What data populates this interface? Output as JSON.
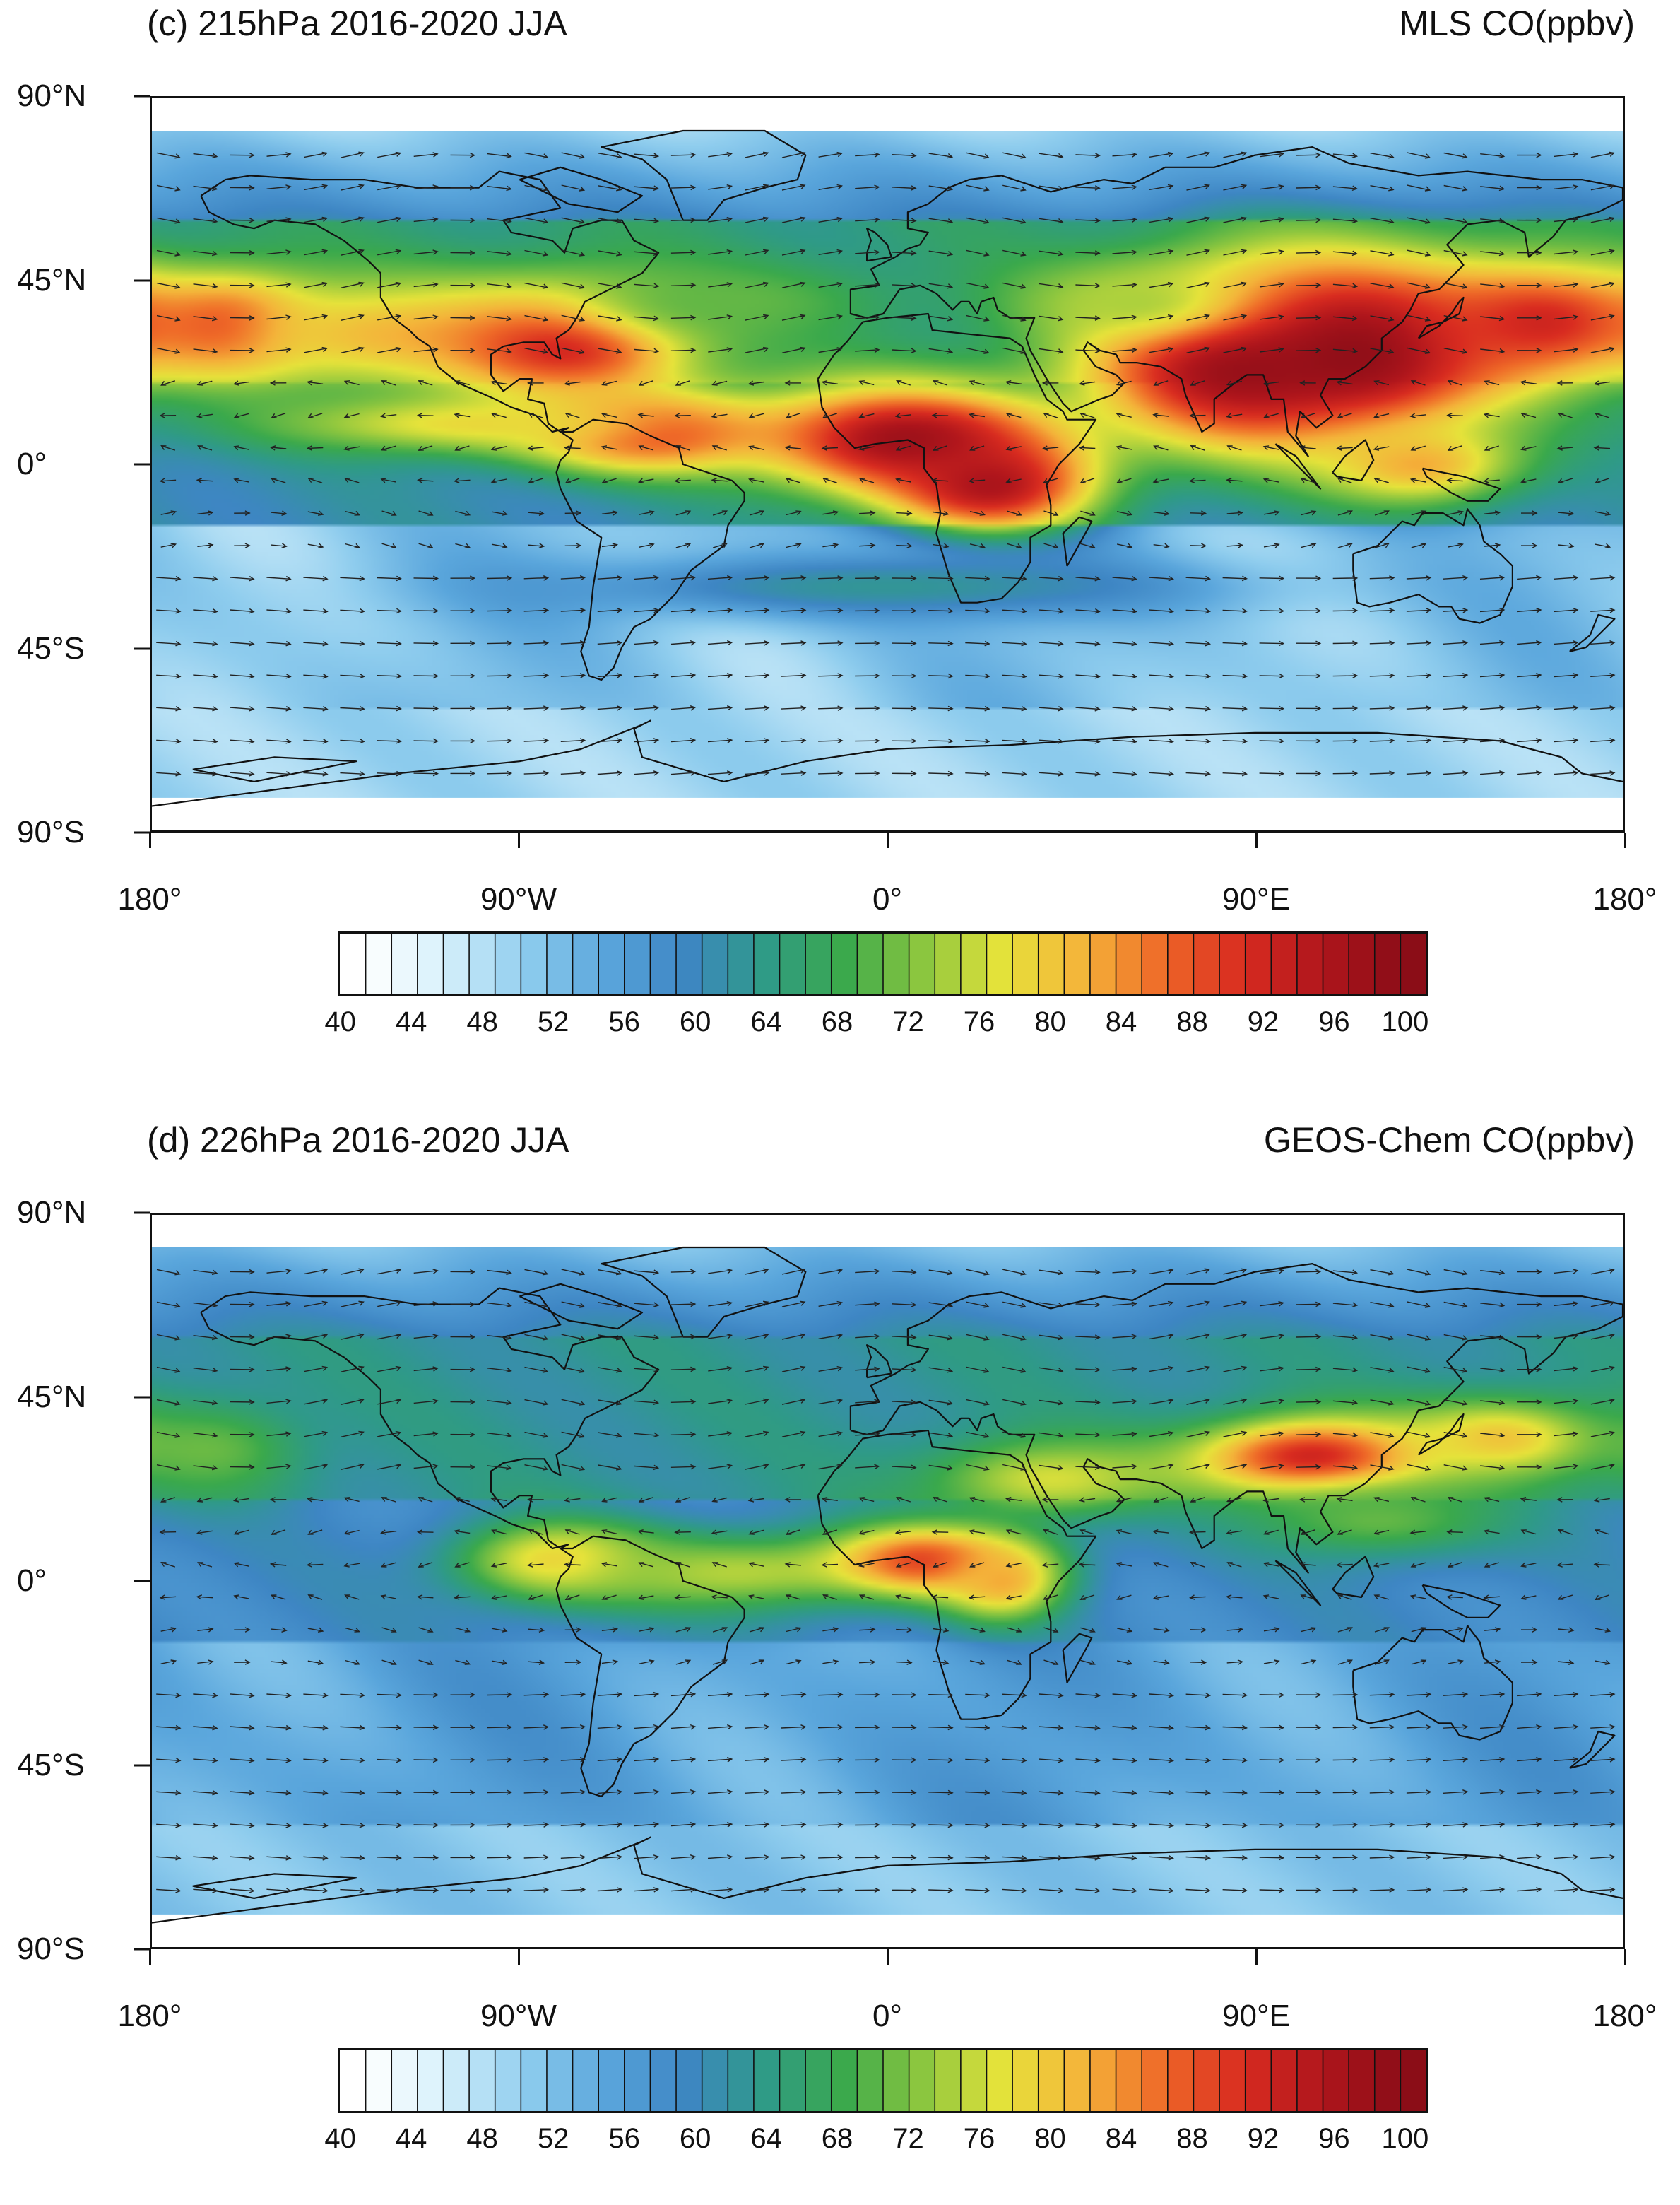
{
  "panels": [
    {
      "id": "c",
      "title_left": "(c) 215hPa  2016-2020 JJA",
      "title_right": "MLS CO(ppbv)",
      "blobs": [
        {
          "lon": -160,
          "lat": 34,
          "rx": 20,
          "ry": 12,
          "value": 90
        },
        {
          "lon": -125,
          "lat": 32,
          "rx": 45,
          "ry": 14,
          "value": 80
        },
        {
          "lon": -78,
          "lat": 30,
          "rx": 30,
          "ry": 14,
          "value": 94
        },
        {
          "lon": -60,
          "lat": 8,
          "rx": 30,
          "ry": 10,
          "value": 92
        },
        {
          "lon": -100,
          "lat": 10,
          "rx": 55,
          "ry": 8,
          "value": 78
        },
        {
          "lon": 5,
          "lat": 6,
          "rx": 38,
          "ry": 14,
          "value": 98
        },
        {
          "lon": 25,
          "lat": -5,
          "rx": 25,
          "ry": 12,
          "value": 96
        },
        {
          "lon": 85,
          "lat": 25,
          "rx": 35,
          "ry": 20,
          "value": 98
        },
        {
          "lon": 115,
          "lat": 28,
          "rx": 40,
          "ry": 22,
          "value": 100
        },
        {
          "lon": 160,
          "lat": 35,
          "rx": 30,
          "ry": 14,
          "value": 92
        },
        {
          "lon": 130,
          "lat": 0,
          "rx": 25,
          "ry": 10,
          "value": 82
        },
        {
          "lon": 60,
          "lat": 40,
          "rx": 30,
          "ry": 10,
          "value": 74
        },
        {
          "lon": -40,
          "lat": 40,
          "rx": 40,
          "ry": 10,
          "value": 70
        },
        {
          "lon": 0,
          "lat": -30,
          "rx": 80,
          "ry": 8,
          "value": 62
        }
      ],
      "base": {
        "tropics": 60,
        "midlat": 64,
        "poles": 50,
        "south": 50
      }
    },
    {
      "id": "d",
      "title_left": "(d) 226hPa  2016-2020 JJA",
      "title_right": "GEOS-Chem CO(ppbv)",
      "blobs": [
        {
          "lon": -165,
          "lat": 32,
          "rx": 22,
          "ry": 12,
          "value": 70
        },
        {
          "lon": -80,
          "lat": 5,
          "rx": 25,
          "ry": 10,
          "value": 80
        },
        {
          "lon": -40,
          "lat": 2,
          "rx": 40,
          "ry": 10,
          "value": 74
        },
        {
          "lon": 10,
          "lat": 5,
          "rx": 25,
          "ry": 9,
          "value": 90
        },
        {
          "lon": 28,
          "lat": 0,
          "rx": 15,
          "ry": 10,
          "value": 82
        },
        {
          "lon": 40,
          "lat": 25,
          "rx": 30,
          "ry": 10,
          "value": 76
        },
        {
          "lon": 105,
          "lat": 30,
          "rx": 30,
          "ry": 10,
          "value": 94
        },
        {
          "lon": 150,
          "lat": 35,
          "rx": 25,
          "ry": 10,
          "value": 80
        },
        {
          "lon": 120,
          "lat": 15,
          "rx": 35,
          "ry": 10,
          "value": 70
        }
      ],
      "base": {
        "tropics": 58,
        "midlat": 62,
        "poles": 52,
        "south": 54
      }
    }
  ],
  "map": {
    "lat_labels": [
      "90°N",
      "45°N",
      "0°",
      "45°S",
      "90°S"
    ],
    "lat_values": [
      90,
      45,
      0,
      -45,
      -90
    ],
    "lon_labels": [
      "180°",
      "90°W",
      "0°",
      "90°E",
      "180°"
    ],
    "lon_values": [
      -180,
      -90,
      0,
      90,
      180
    ]
  },
  "colorbar": {
    "min": 40,
    "max": 100,
    "step": 1.5,
    "labels": [
      "40",
      "44",
      "48",
      "52",
      "56",
      "60",
      "64",
      "68",
      "72",
      "76",
      "80",
      "84",
      "88",
      "92",
      "96",
      "100"
    ]
  },
  "colors": {
    "palette_stops": [
      "#ffffff",
      "#d6f0fb",
      "#8fcdee",
      "#5aa6dc",
      "#3e86c4",
      "#2f9a88",
      "#3aa94c",
      "#8cc63f",
      "#e6e33a",
      "#f4b43a",
      "#ef6a28",
      "#d92c20",
      "#b0161c",
      "#8b0d17"
    ],
    "coast": "#111111",
    "vector": "#222222"
  }
}
